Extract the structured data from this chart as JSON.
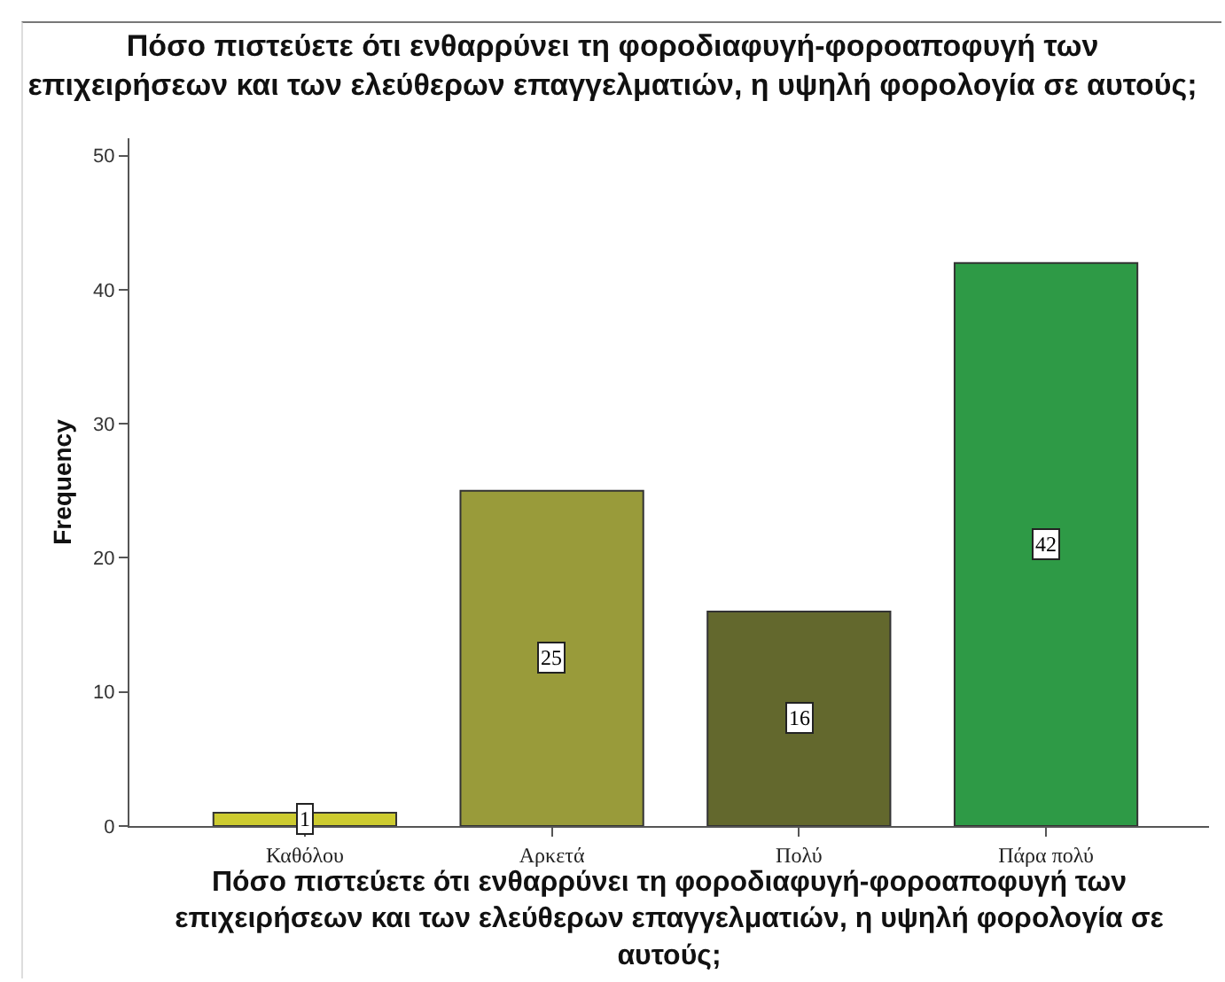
{
  "chart_data": {
    "type": "bar",
    "title": "Πόσο πιστεύετε ότι ενθαρρύνει τη φοροδιαφυγή-φοροαποφυγή των\nεπιχειρήσεων και των ελεύθερων επαγγελματιών, η υψηλή φορολογία σε αυτούς;",
    "xlabel": "Πόσο πιστεύετε ότι ενθαρρύνει τη φοροδιαφυγή-φοροαποφυγή των\nεπιχειρήσεων και των ελεύθερων επαγγελματιών, η υψηλή φορολογία σε αυτούς;",
    "ylabel": "Frequency",
    "categories": [
      "Καθόλου",
      "Αρκετά",
      "Πολύ",
      "Πάρα πολύ"
    ],
    "values": [
      1,
      25,
      16,
      42
    ],
    "colors": [
      "#cdcb30",
      "#999b3a",
      "#63682d",
      "#2e9a46"
    ],
    "ylim": [
      0,
      51.3
    ],
    "yticks": [
      0,
      10,
      20,
      30,
      40,
      50
    ],
    "grid": false,
    "data_labels": true
  }
}
